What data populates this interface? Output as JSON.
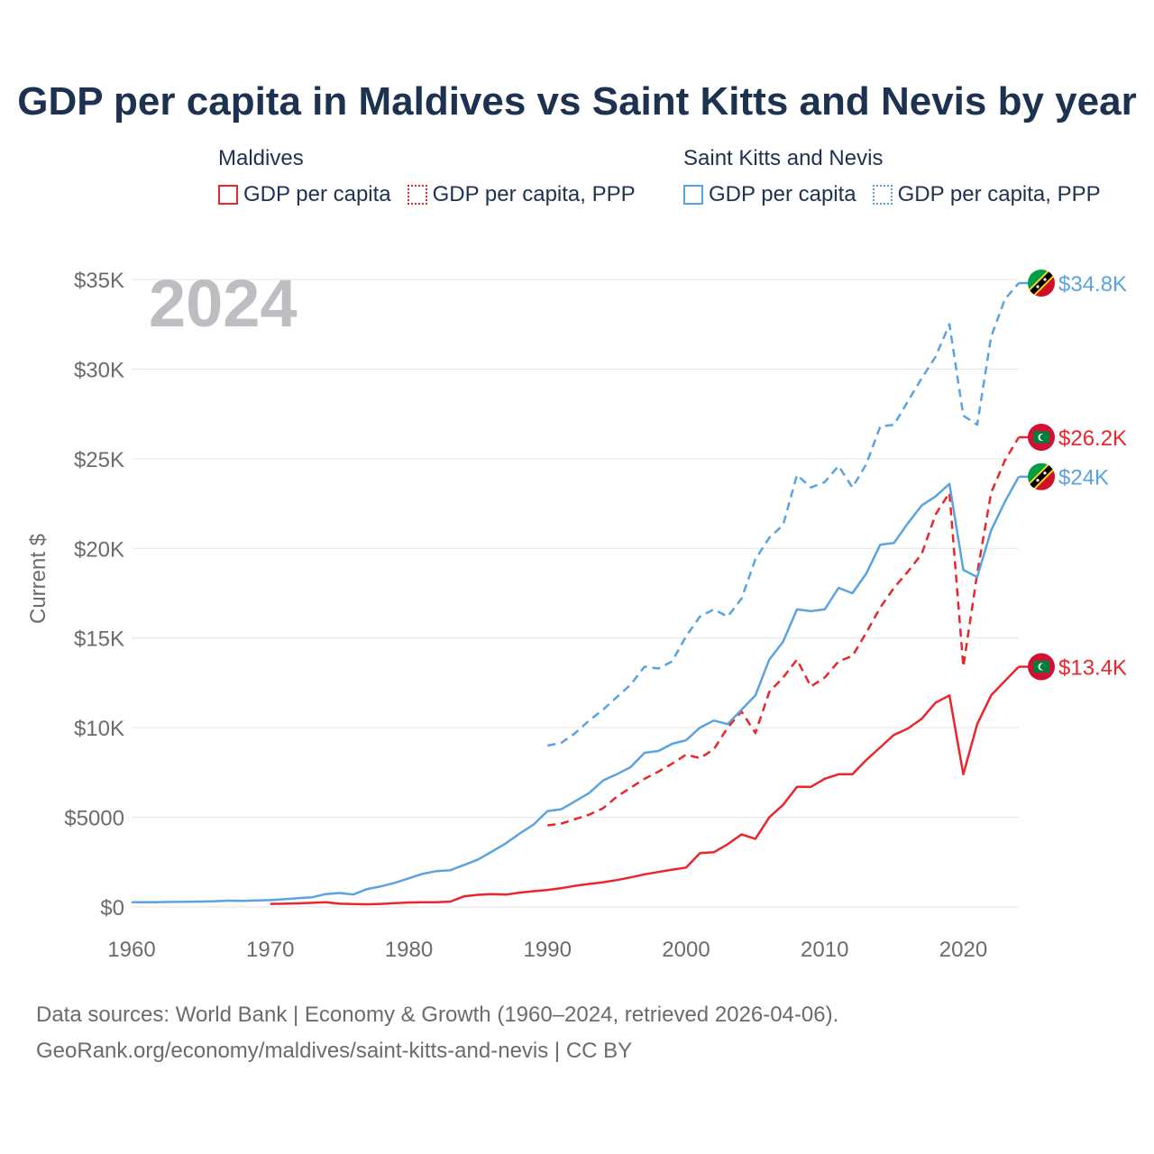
{
  "title": "GDP per capita in Maldives vs Saint Kitts and Nevis by year",
  "legend": {
    "groups": [
      {
        "name": "Maldives",
        "items": [
          {
            "label": "GDP per capita",
            "style": "solid",
            "color": "#e8262b"
          },
          {
            "label": "GDP per capita, PPP",
            "style": "dotted",
            "color": "#e8262b"
          }
        ]
      },
      {
        "name": "Saint Kitts and Nevis",
        "items": [
          {
            "label": "GDP per capita",
            "style": "solid",
            "color": "#5ba3e0"
          },
          {
            "label": "GDP per capita, PPP",
            "style": "dotted",
            "color": "#5ba3e0"
          }
        ]
      }
    ]
  },
  "year_watermark": "2024",
  "footer": {
    "line1": "Data sources: World Bank | Economy & Growth (1960–2024, retrieved 2026-04-06).",
    "line2": "GeoRank.org/economy/maldives/saint-kitts-and-nevis | CC BY"
  },
  "chart_data": {
    "type": "line",
    "title": "GDP per capita in Maldives vs Saint Kitts and Nevis by year",
    "xlabel": "",
    "ylabel": "Current $",
    "xlim": [
      1960,
      2024
    ],
    "ylim": [
      0,
      35000
    ],
    "grid": true,
    "x_ticks": [
      1960,
      1970,
      1980,
      1990,
      2000,
      2010,
      2020
    ],
    "x_tick_labels": [
      "1960",
      "1970",
      "1980",
      "1990",
      "2000",
      "2010",
      "2020"
    ],
    "y_ticks": [
      0,
      5000,
      10000,
      15000,
      20000,
      25000,
      30000,
      35000
    ],
    "y_tick_labels": [
      "$0",
      "$5000",
      "$10K",
      "$15K",
      "$20K",
      "$25K",
      "$30K",
      "$35K"
    ],
    "series": [
      {
        "name": "Saint Kitts and Nevis GDP per capita, PPP",
        "color": "#5ba3e0",
        "dash": "dashed",
        "x": [
          1990,
          1991,
          1992,
          1993,
          1994,
          1995,
          1996,
          1997,
          1998,
          1999,
          2000,
          2001,
          2002,
          2003,
          2004,
          2005,
          2006,
          2007,
          2008,
          2009,
          2010,
          2011,
          2012,
          2013,
          2014,
          2015,
          2016,
          2017,
          2018,
          2019,
          2020,
          2021,
          2022,
          2023,
          2024
        ],
        "values": [
          9000,
          9150,
          9700,
          10400,
          11000,
          11700,
          12400,
          13400,
          13300,
          13700,
          15100,
          16200,
          16600,
          16200,
          17200,
          19400,
          20600,
          21300,
          24100,
          23400,
          23700,
          24600,
          23400,
          24700,
          26800,
          26900,
          28200,
          29500,
          30700,
          32500,
          27400,
          26900,
          31800,
          33900,
          34800
        ]
      },
      {
        "name": "Maldives GDP per capita, PPP",
        "color": "#e8262b",
        "dash": "dashed",
        "x": [
          1990,
          1991,
          1992,
          1993,
          1994,
          1995,
          1996,
          1997,
          1998,
          1999,
          2000,
          2001,
          2002,
          2003,
          2004,
          2005,
          2006,
          2007,
          2008,
          2009,
          2010,
          2011,
          2012,
          2013,
          2014,
          2015,
          2016,
          2017,
          2018,
          2019,
          2020,
          2021,
          2022,
          2023,
          2024
        ],
        "values": [
          4550,
          4650,
          4900,
          5150,
          5500,
          6150,
          6650,
          7150,
          7550,
          8000,
          8500,
          8300,
          8800,
          10000,
          10900,
          9700,
          12000,
          12800,
          13800,
          12300,
          12800,
          13700,
          14000,
          15300,
          16700,
          17800,
          18700,
          19700,
          21900,
          23100,
          13400,
          18600,
          23100,
          24900,
          26200
        ]
      },
      {
        "name": "Saint Kitts and Nevis GDP per capita",
        "color": "#5ba3e0",
        "dash": "solid",
        "x": [
          1960,
          1961,
          1962,
          1963,
          1964,
          1965,
          1966,
          1967,
          1968,
          1969,
          1970,
          1971,
          1972,
          1973,
          1974,
          1975,
          1976,
          1977,
          1978,
          1979,
          1980,
          1981,
          1982,
          1983,
          1984,
          1985,
          1986,
          1987,
          1988,
          1989,
          1990,
          1991,
          1992,
          1993,
          1994,
          1995,
          1996,
          1997,
          1998,
          1999,
          2000,
          2001,
          2002,
          2003,
          2004,
          2005,
          2006,
          2007,
          2008,
          2009,
          2010,
          2011,
          2012,
          2013,
          2014,
          2015,
          2016,
          2017,
          2018,
          2019,
          2020,
          2021,
          2022,
          2023,
          2024
        ],
        "values": [
          260,
          265,
          270,
          280,
          290,
          300,
          320,
          350,
          340,
          360,
          380,
          430,
          490,
          540,
          720,
          780,
          700,
          1000,
          1150,
          1350,
          1600,
          1850,
          2000,
          2050,
          2350,
          2650,
          3100,
          3550,
          4100,
          4600,
          5350,
          5450,
          5900,
          6350,
          7050,
          7400,
          7800,
          8600,
          8700,
          9100,
          9300,
          10000,
          10400,
          10200,
          11000,
          11800,
          13800,
          14800,
          16600,
          16500,
          16600,
          17800,
          17500,
          18600,
          20200,
          20300,
          21400,
          22400,
          22900,
          23600,
          18800,
          18400,
          21000,
          22600,
          24000
        ]
      },
      {
        "name": "Maldives GDP per capita",
        "color": "#e8262b",
        "dash": "solid",
        "x": [
          1970,
          1971,
          1972,
          1973,
          1974,
          1975,
          1976,
          1977,
          1978,
          1979,
          1980,
          1981,
          1982,
          1983,
          1984,
          1985,
          1986,
          1987,
          1988,
          1989,
          1990,
          1991,
          1992,
          1993,
          1994,
          1995,
          1996,
          1997,
          1998,
          1999,
          2000,
          2001,
          2002,
          2003,
          2004,
          2005,
          2006,
          2007,
          2008,
          2009,
          2010,
          2011,
          2012,
          2013,
          2014,
          2015,
          2016,
          2017,
          2018,
          2019,
          2020,
          2021,
          2022,
          2023,
          2024
        ],
        "values": [
          170,
          180,
          200,
          230,
          260,
          180,
          160,
          150,
          170,
          210,
          250,
          260,
          260,
          300,
          600,
          680,
          720,
          690,
          800,
          880,
          950,
          1050,
          1180,
          1280,
          1380,
          1500,
          1650,
          1820,
          1950,
          2080,
          2200,
          3000,
          3050,
          3500,
          4050,
          3800,
          5000,
          5700,
          6700,
          6700,
          7150,
          7400,
          7400,
          8200,
          8900,
          9600,
          9950,
          10500,
          11400,
          11800,
          7400,
          10200,
          11800,
          12600,
          13400
        ]
      }
    ],
    "end_labels": [
      {
        "series": "Saint Kitts and Nevis GDP per capita, PPP",
        "text": "$34.8K",
        "value": 34800,
        "flag": "kn",
        "color": "#5ba3e0"
      },
      {
        "series": "Maldives GDP per capita, PPP",
        "text": "$26.2K",
        "value": 26200,
        "flag": "mv",
        "color": "#e8262b"
      },
      {
        "series": "Saint Kitts and Nevis GDP per capita",
        "text": "$24K",
        "value": 24000,
        "flag": "kn",
        "color": "#5ba3e0"
      },
      {
        "series": "Maldives GDP per capita",
        "text": "$13.4K",
        "value": 13400,
        "flag": "mv",
        "color": "#e8262b"
      }
    ]
  }
}
